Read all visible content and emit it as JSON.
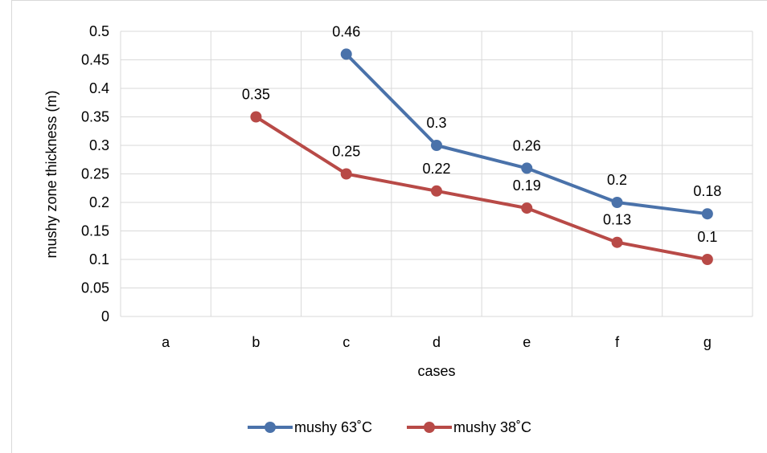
{
  "chart_data": {
    "type": "line",
    "categories": [
      "a",
      "b",
      "c",
      "d",
      "e",
      "f",
      "g"
    ],
    "series": [
      {
        "name": "mushy 63˚C",
        "color": "#4a72aa",
        "values": [
          null,
          null,
          0.46,
          0.3,
          0.26,
          0.2,
          0.18
        ]
      },
      {
        "name": "mushy 38˚C",
        "color": "#b84a47",
        "values": [
          null,
          0.35,
          0.25,
          0.22,
          0.19,
          0.13,
          0.1
        ]
      }
    ],
    "xlabel": "cases",
    "ylabel": "mushy zone thickness (m)",
    "ylim": [
      0,
      0.5
    ],
    "yticks": [
      "0",
      "0.05",
      "0.1",
      "0.15",
      "0.2",
      "0.25",
      "0.3",
      "0.35",
      "0.4",
      "0.45",
      "0.5"
    ],
    "grid": true,
    "legend_position": "bottom"
  }
}
